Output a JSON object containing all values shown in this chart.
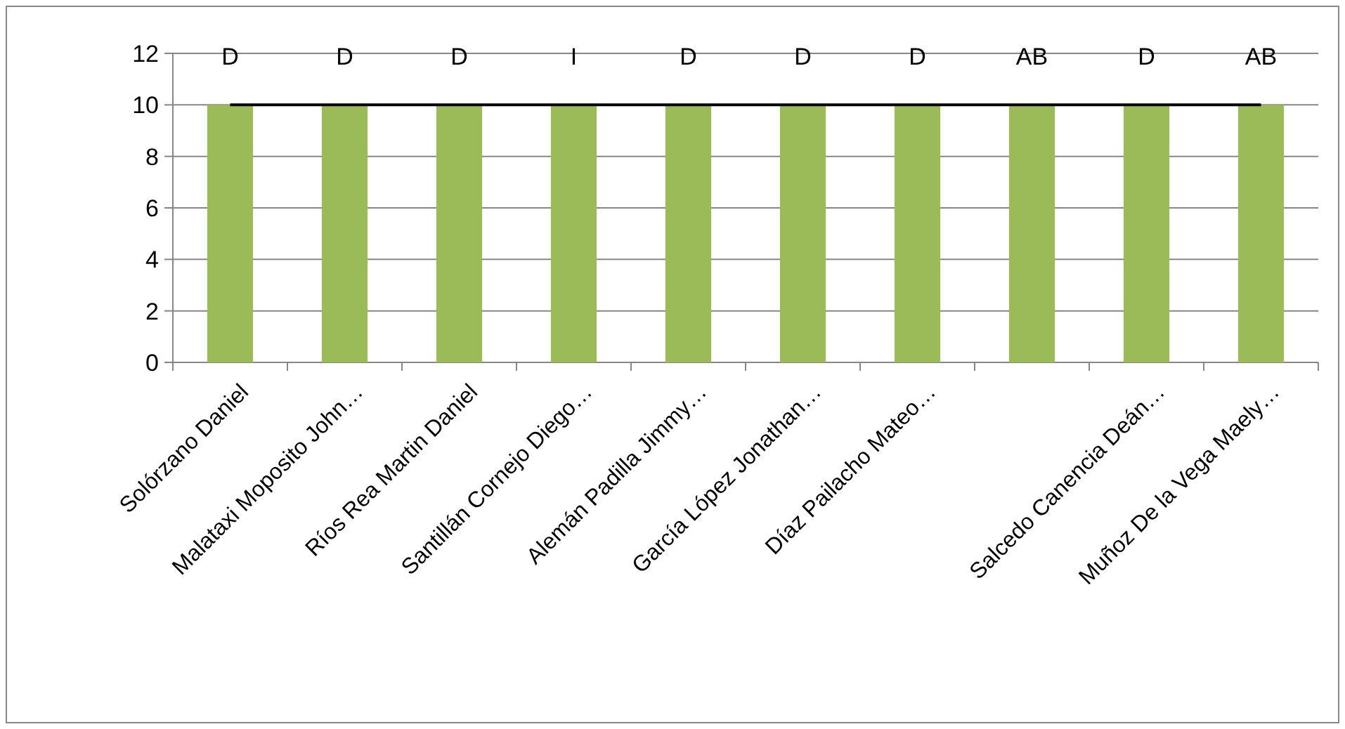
{
  "chart_data": {
    "type": "bar",
    "categories": [
      "Solórzano Daniel",
      "Malataxi Moposito John…",
      "Ríos Rea Martin Daniel",
      "Santillán Cornejo Diego…",
      "Alemán Padilla Jimmy…",
      "García López Jonathan…",
      "Díaz Pailacho Mateo…",
      null,
      "Salcedo Canencia Deán…",
      "Muñoz De la Vega Maely…"
    ],
    "series": [
      {
        "color": "#9bbb59",
        "values": [
          10,
          10,
          10,
          10,
          10,
          10,
          10,
          10,
          10,
          10
        ],
        "value_labels": [
          "D",
          "D",
          "D",
          "I",
          "D",
          "D",
          "D",
          "AB",
          "D",
          "AB"
        ]
      },
      {
        "type": "line",
        "color": "#000000",
        "values": [
          10,
          10,
          10,
          10,
          10,
          10,
          10,
          10,
          10,
          10
        ]
      }
    ],
    "ylim": [
      0,
      12
    ],
    "yticks": [
      0,
      2,
      4,
      6,
      8,
      10,
      12
    ],
    "grid": "y"
  }
}
